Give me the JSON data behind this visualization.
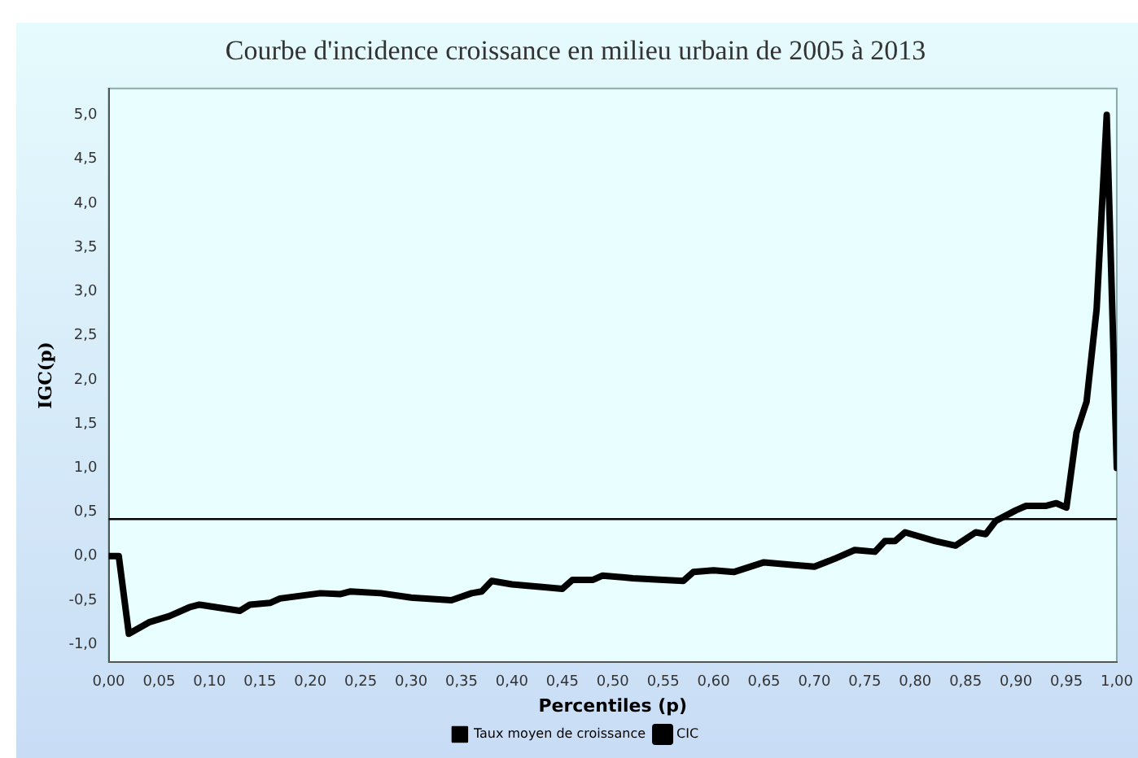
{
  "chart_data": {
    "type": "line",
    "title": "Courbe d'incidence croissance en milieu urbain de 2005 à 2013",
    "xlabel": "Percentiles (p)",
    "ylabel": "IGC(p)",
    "xlim": [
      0,
      1
    ],
    "xticks": [
      {
        "value": 0,
        "label": "0,00"
      },
      {
        "value": 0.05,
        "label": "0,05"
      },
      {
        "value": 0.1,
        "label": "0,10"
      },
      {
        "value": 0.15,
        "label": "0,15"
      },
      {
        "value": 0.2,
        "label": "0,20"
      },
      {
        "value": 0.25,
        "label": "0,25"
      },
      {
        "value": 0.3,
        "label": "0,30"
      },
      {
        "value": 0.35,
        "label": "0,35"
      },
      {
        "value": 0.4,
        "label": "0,40"
      },
      {
        "value": 0.45,
        "label": "0,45"
      },
      {
        "value": 0.5,
        "label": "0,50"
      },
      {
        "value": 0.55,
        "label": "0,55"
      },
      {
        "value": 0.6,
        "label": "0,60"
      },
      {
        "value": 0.65,
        "label": "0,65"
      },
      {
        "value": 0.7,
        "label": "0,70"
      },
      {
        "value": 0.75,
        "label": "0,75"
      },
      {
        "value": 0.8,
        "label": "0,80"
      },
      {
        "value": 0.85,
        "label": "0,85"
      },
      {
        "value": 0.9,
        "label": "0,90"
      },
      {
        "value": 0.95,
        "label": "0,95"
      },
      {
        "value": 1,
        "label": "1,00"
      }
    ],
    "ylim": [
      -1.2,
      5.3
    ],
    "yticks": [
      {
        "value": -1,
        "label": "-1,0"
      },
      {
        "value": -0.5,
        "label": "-0,5"
      },
      {
        "value": 0,
        "label": "0,0"
      },
      {
        "value": 0.5,
        "label": "0,5"
      },
      {
        "value": 1,
        "label": "1,0"
      },
      {
        "value": 1.5,
        "label": "1,5"
      },
      {
        "value": 2,
        "label": "2,0"
      },
      {
        "value": 2.5,
        "label": "2,5"
      },
      {
        "value": 3,
        "label": "3,0"
      },
      {
        "value": 3.5,
        "label": "3,5"
      },
      {
        "value": 4,
        "label": "4,0"
      },
      {
        "value": 4.5,
        "label": "4,5"
      },
      {
        "value": 5,
        "label": "5,0"
      }
    ],
    "grid": false,
    "legend": "bottom",
    "marker": "none",
    "series": [
      {
        "name": "Taux moyen de croissance",
        "color": "#000000",
        "x": [
          0,
          1
        ],
        "values": [
          0.42,
          0.42
        ]
      },
      {
        "name": "CIC",
        "color": "#000000",
        "x": [
          0,
          0.01,
          0.02,
          0.04,
          0.06,
          0.08,
          0.09,
          0.13,
          0.14,
          0.16,
          0.17,
          0.19,
          0.21,
          0.23,
          0.24,
          0.27,
          0.3,
          0.34,
          0.36,
          0.37,
          0.38,
          0.4,
          0.43,
          0.45,
          0.46,
          0.48,
          0.49,
          0.52,
          0.55,
          0.57,
          0.58,
          0.6,
          0.62,
          0.65,
          0.68,
          0.7,
          0.72,
          0.74,
          0.76,
          0.77,
          0.78,
          0.79,
          0.82,
          0.84,
          0.86,
          0.87,
          0.88,
          0.9,
          0.91,
          0.93,
          0.94,
          0.95,
          0.96,
          0.97,
          0.98,
          0.99,
          1
        ],
        "values": [
          0,
          0,
          -0.88,
          -0.75,
          -0.68,
          -0.58,
          -0.55,
          -0.62,
          -0.55,
          -0.53,
          -0.48,
          -0.45,
          -0.42,
          -0.43,
          -0.4,
          -0.42,
          -0.47,
          -0.5,
          -0.42,
          -0.4,
          -0.28,
          -0.32,
          -0.35,
          -0.37,
          -0.27,
          -0.27,
          -0.22,
          -0.25,
          -0.27,
          -0.28,
          -0.18,
          -0.16,
          -0.18,
          -0.07,
          -0.1,
          -0.12,
          -0.03,
          0.07,
          0.05,
          0.17,
          0.17,
          0.27,
          0.17,
          0.12,
          0.27,
          0.25,
          0.4,
          0.52,
          0.57,
          0.57,
          0.6,
          0.55,
          1.4,
          1.75,
          2.8,
          5,
          1
        ]
      }
    ]
  }
}
